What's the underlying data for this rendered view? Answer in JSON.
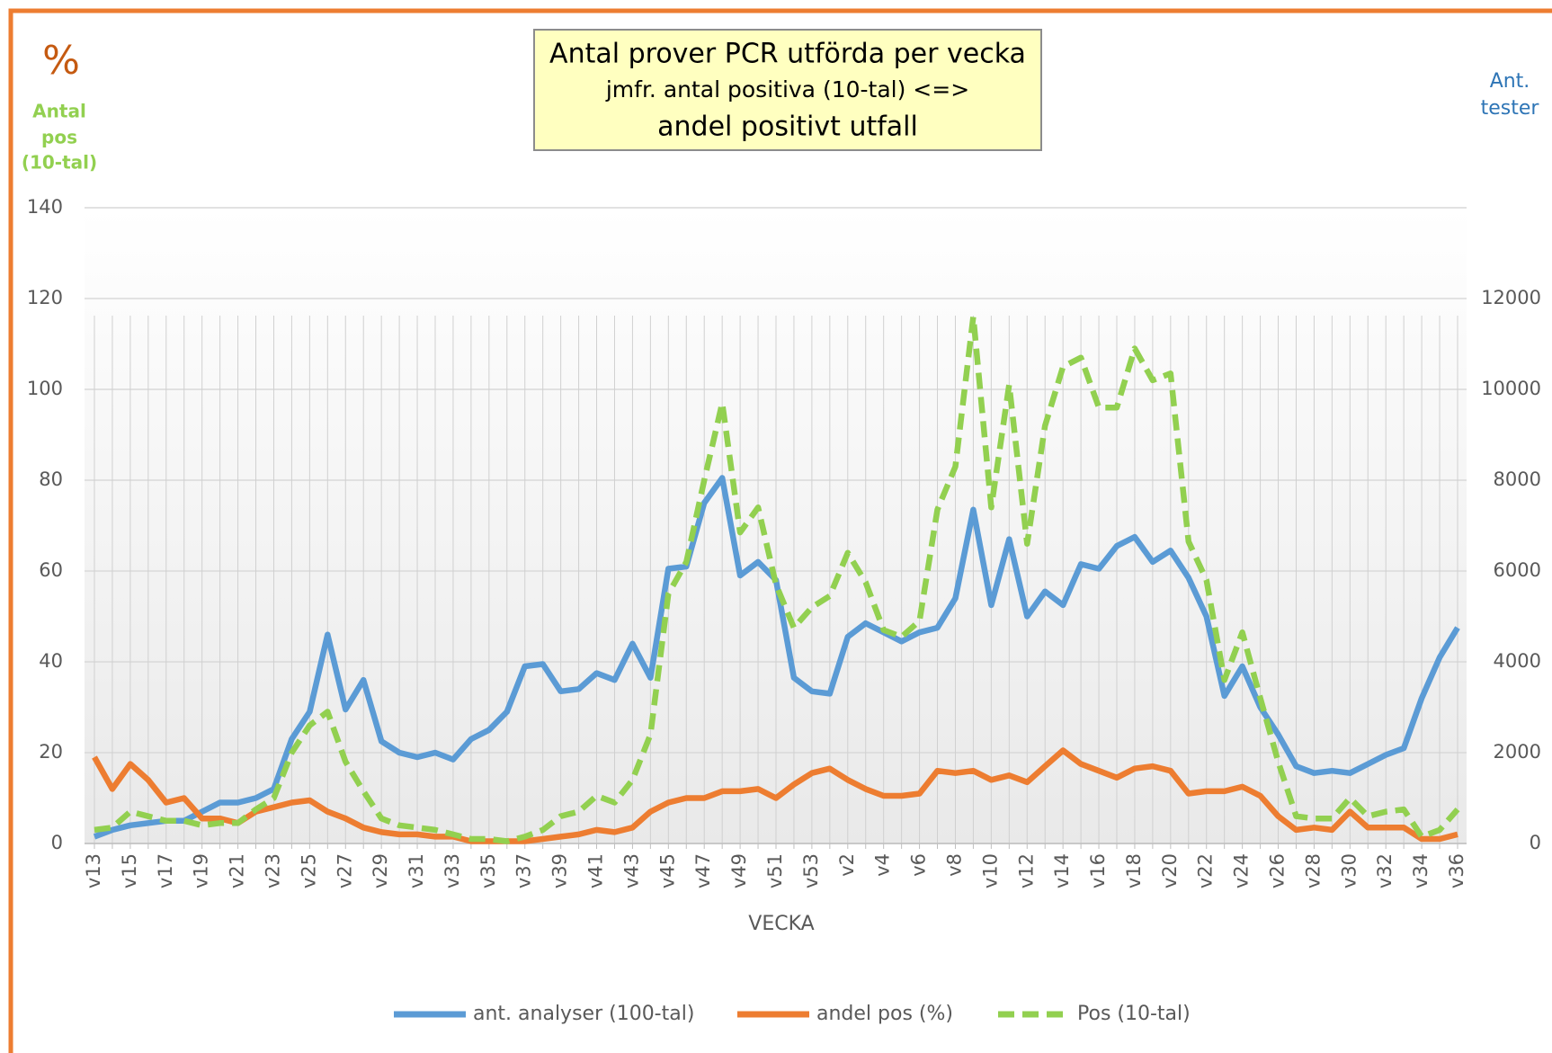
{
  "chart_data": {
    "type": "line",
    "title_lines": [
      "Antal prover PCR utförda per vecka",
      "jmfr. antal positiva (10-tal) <=>",
      "andel positivt utfall"
    ],
    "y_label": "%",
    "y_label_lines": [
      "Antal",
      "pos",
      "(10-tal)"
    ],
    "y2_label_lines": [
      "Ant.",
      "tester"
    ],
    "x_label": "VECKA",
    "categories": [
      "v13",
      null,
      "v15",
      null,
      "v17",
      null,
      "v19",
      null,
      "v21",
      null,
      "v23",
      null,
      "v25",
      null,
      "v27",
      null,
      "v29",
      null,
      "v31",
      null,
      "v33",
      null,
      "v35",
      null,
      "v37",
      null,
      "v39",
      null,
      "v41",
      null,
      "v43",
      null,
      "v45",
      null,
      "v47",
      null,
      "v49",
      null,
      "v51",
      null,
      "v53",
      null,
      "v2",
      null,
      "v4",
      null,
      "v6",
      null,
      "v8",
      null,
      "v10",
      null,
      "v12",
      null,
      "v14",
      null,
      "v16",
      null,
      "v18",
      null,
      "v20",
      null,
      "v22",
      null,
      "v24",
      null,
      "v26",
      null,
      "v28",
      null,
      "v30",
      null,
      "v32",
      null,
      "v34",
      null,
      "v36"
    ],
    "series": [
      {
        "name": "ant. analyser (100-tal)",
        "color": "#5b9bd5",
        "dashed": false,
        "values": [
          1.5,
          3,
          4,
          4.5,
          5,
          5,
          7,
          9,
          9,
          10,
          12,
          23,
          29,
          46,
          29.5,
          36,
          22.5,
          20,
          19,
          20,
          18.5,
          23,
          25,
          29,
          39,
          39.5,
          33.5,
          34,
          37.5,
          36,
          44,
          36.5,
          60.5,
          61,
          75,
          80.5,
          59,
          62,
          58,
          36.5,
          33.5,
          33,
          45.5,
          48.5,
          46.5,
          44.5,
          46.5,
          47.5,
          54,
          73.5,
          52.5,
          67,
          50,
          55.5,
          52.5,
          61.5,
          60.5,
          65.5,
          67.5,
          62,
          64.5,
          58.5,
          50,
          32.5,
          39,
          30,
          24,
          17,
          15.5,
          16,
          15.5,
          17.5,
          19.5,
          21,
          32,
          41,
          47.5
        ]
      },
      {
        "name": "andel pos (%)",
        "color": "#ed7d31",
        "dashed": false,
        "values": [
          19,
          12,
          17.5,
          14,
          9,
          10,
          5.5,
          5.5,
          4.5,
          7,
          8,
          9,
          9.5,
          7,
          5.5,
          3.5,
          2.5,
          2,
          2,
          1.5,
          1.5,
          0.5,
          0.5,
          0.5,
          0.5,
          1,
          1.5,
          2,
          3,
          2.5,
          3.5,
          7,
          9,
          10,
          10,
          11.5,
          11.5,
          12,
          10,
          13,
          15.5,
          16.5,
          14,
          12,
          10.5,
          10.5,
          11,
          16,
          15.5,
          16,
          14,
          15,
          13.5,
          17,
          20.5,
          17.5,
          16,
          14.5,
          16.5,
          17,
          16,
          11,
          11.5,
          11.5,
          12.5,
          10.5,
          6,
          3,
          3.5,
          3,
          7,
          3.5,
          3.5,
          3.5,
          1,
          1,
          2
        ]
      },
      {
        "name": "Pos (10-tal)",
        "color": "#92d050",
        "dashed": true,
        "values": [
          3,
          3.5,
          7,
          6,
          5,
          5,
          4,
          4.5,
          4.5,
          7.5,
          10,
          20,
          26,
          29,
          18,
          11.5,
          5.5,
          4,
          3.5,
          3,
          2,
          1,
          1,
          0.5,
          1.5,
          3,
          6,
          7,
          10.5,
          9,
          14,
          24,
          55,
          62,
          80,
          97,
          68.5,
          74,
          57,
          47.5,
          52,
          54.5,
          64,
          57.5,
          47,
          45.5,
          49,
          73.5,
          83,
          116,
          74,
          101,
          66,
          92,
          105,
          107,
          96,
          96,
          109,
          102,
          103.5,
          66.5,
          58,
          36,
          46.5,
          32,
          18,
          6,
          5.5,
          5.5,
          10,
          6,
          7,
          7.5,
          1.5,
          3,
          7.5
        ]
      }
    ],
    "ylim": [
      0,
      140
    ],
    "yticks": [
      0,
      20,
      40,
      60,
      80,
      100,
      120,
      140
    ],
    "y2lim": [
      0,
      14000
    ],
    "y2ticks": [
      0,
      2000,
      4000,
      6000,
      8000,
      10000,
      12000
    ],
    "grid": true,
    "legend": "bottom"
  }
}
